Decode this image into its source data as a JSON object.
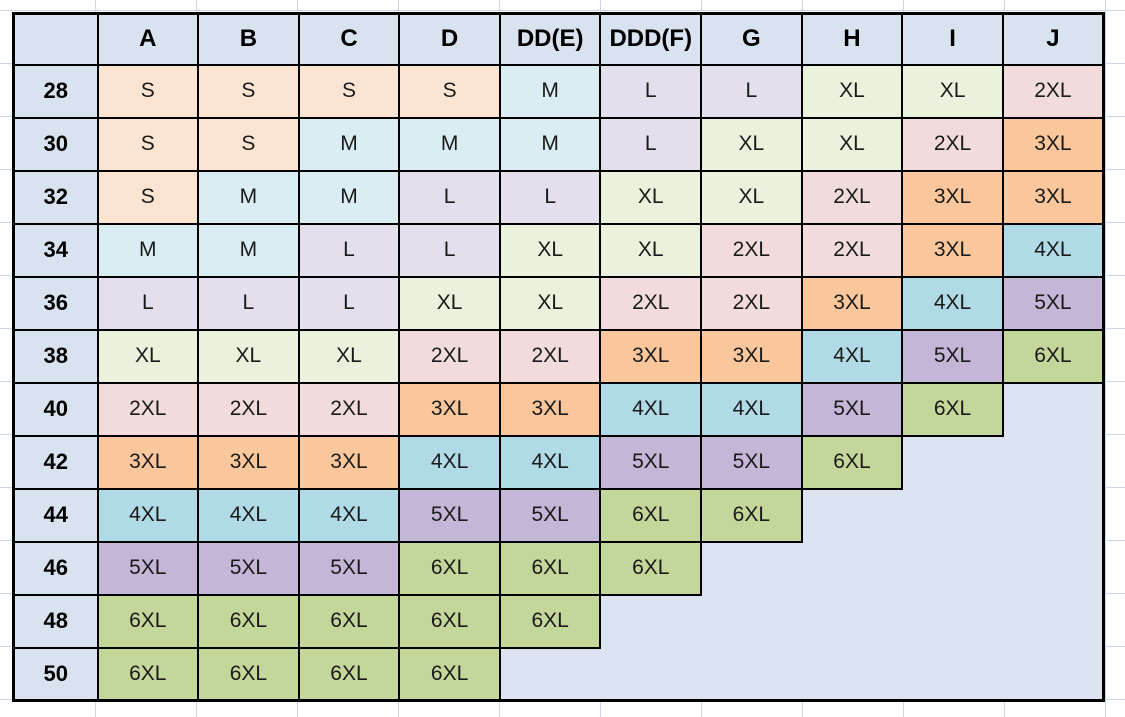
{
  "sheet": {
    "background": "#FFFFFF",
    "gridline_color": "#CBD5E3",
    "table_border_color": "#000000"
  },
  "chart_data": {
    "type": "table",
    "corner_label": "",
    "column_headers": [
      "A",
      "B",
      "C",
      "D",
      "DD(E)",
      "DDD(F)",
      "G",
      "H",
      "I",
      "J"
    ],
    "rows": [
      {
        "label": "28",
        "cells": [
          "S",
          "S",
          "S",
          "S",
          "M",
          "L",
          "L",
          "XL",
          "XL",
          "2XL"
        ]
      },
      {
        "label": "30",
        "cells": [
          "S",
          "S",
          "M",
          "M",
          "M",
          "L",
          "XL",
          "XL",
          "2XL",
          "3XL"
        ]
      },
      {
        "label": "32",
        "cells": [
          "S",
          "M",
          "M",
          "L",
          "L",
          "XL",
          "XL",
          "2XL",
          "3XL",
          "3XL"
        ]
      },
      {
        "label": "34",
        "cells": [
          "M",
          "M",
          "L",
          "L",
          "XL",
          "XL",
          "2XL",
          "2XL",
          "3XL",
          "4XL"
        ]
      },
      {
        "label": "36",
        "cells": [
          "L",
          "L",
          "L",
          "XL",
          "XL",
          "2XL",
          "2XL",
          "3XL",
          "4XL",
          "5XL"
        ]
      },
      {
        "label": "38",
        "cells": [
          "XL",
          "XL",
          "XL",
          "2XL",
          "2XL",
          "3XL",
          "3XL",
          "4XL",
          "5XL",
          "6XL"
        ]
      },
      {
        "label": "40",
        "cells": [
          "2XL",
          "2XL",
          "2XL",
          "3XL",
          "3XL",
          "4XL",
          "4XL",
          "5XL",
          "6XL",
          ""
        ]
      },
      {
        "label": "42",
        "cells": [
          "3XL",
          "3XL",
          "3XL",
          "4XL",
          "4XL",
          "5XL",
          "5XL",
          "6XL",
          "",
          ""
        ]
      },
      {
        "label": "44",
        "cells": [
          "4XL",
          "4XL",
          "4XL",
          "5XL",
          "5XL",
          "6XL",
          "6XL",
          "",
          "",
          ""
        ]
      },
      {
        "label": "46",
        "cells": [
          "5XL",
          "5XL",
          "5XL",
          "6XL",
          "6XL",
          "6XL",
          "",
          "",
          "",
          ""
        ]
      },
      {
        "label": "48",
        "cells": [
          "6XL",
          "6XL",
          "6XL",
          "6XL",
          "6XL",
          "",
          "",
          "",
          "",
          ""
        ]
      },
      {
        "label": "50",
        "cells": [
          "6XL",
          "6XL",
          "6XL",
          "6XL",
          "",
          "",
          "",
          "",
          "",
          ""
        ]
      }
    ],
    "size_color_map": {
      "S": "#FCE4D2",
      "M": "#D9EDF3",
      "L": "#E4DFEC",
      "XL": "#EAF1DC",
      "2XL": "#F2DCDB",
      "3XL": "#FAC79C",
      "4XL": "#B0DBE6",
      "5XL": "#C3B6D6",
      "6XL": "#C4D79B"
    },
    "header_fill": "#D9E2EF",
    "row_label_fill": "#D9E2EF",
    "empty_cell_fill": "#DBE4F0",
    "text_color": "#1A1A1A",
    "layout_hints": {
      "grid": "on",
      "legend": "none",
      "title": "none"
    }
  }
}
